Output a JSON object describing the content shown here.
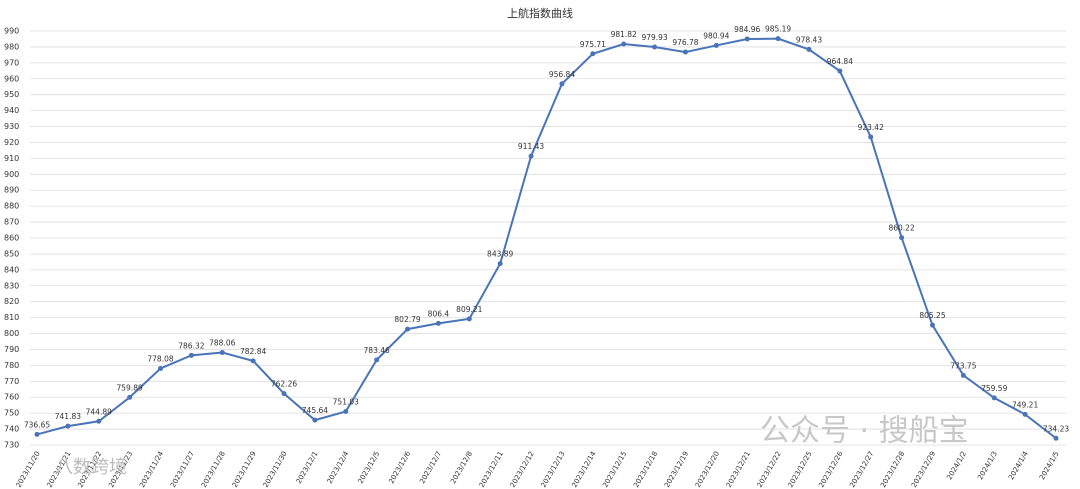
{
  "chart_data": {
    "type": "line",
    "title": "上航指数曲线",
    "categories": [
      "2023/11/20",
      "2023/11/21",
      "2023/11/22",
      "2023/11/23",
      "2023/11/24",
      "2023/11/27",
      "2023/11/28",
      "2023/11/29",
      "2023/11/30",
      "2023/12/1",
      "2023/12/4",
      "2023/12/5",
      "2023/12/6",
      "2023/12/7",
      "2023/12/8",
      "2023/12/11",
      "2023/12/12",
      "2023/12/13",
      "2023/12/14",
      "2023/12/15",
      "2023/12/18",
      "2023/12/19",
      "2023/12/20",
      "2023/12/21",
      "2023/12/22",
      "2023/12/25",
      "2023/12/26",
      "2023/12/27",
      "2023/12/28",
      "2023/12/29",
      "2024/1/2",
      "2024/1/3",
      "2024/1/4",
      "2024/1/5"
    ],
    "values": [
      736.65,
      741.83,
      744.89,
      759.89,
      778.08,
      786.32,
      788.06,
      782.84,
      762.26,
      745.64,
      751.03,
      783.46,
      802.79,
      806.4,
      809.21,
      843.89,
      911.43,
      956.84,
      975.71,
      981.82,
      979.93,
      976.78,
      980.94,
      984.96,
      985.19,
      978.43,
      964.84,
      923.42,
      860.22,
      805.25,
      773.75,
      759.59,
      749.21,
      734.23
    ],
    "color": "#4a74b8",
    "ylim": [
      730,
      990
    ],
    "yticks": [
      730,
      740,
      750,
      760,
      770,
      780,
      790,
      800,
      810,
      820,
      830,
      840,
      850,
      860,
      870,
      880,
      890,
      900,
      910,
      920,
      930,
      940,
      950,
      960,
      970,
      980,
      990
    ],
    "grid": true,
    "watermarks": [
      "公众号 · 搜船宝",
      "八数跨境"
    ]
  }
}
